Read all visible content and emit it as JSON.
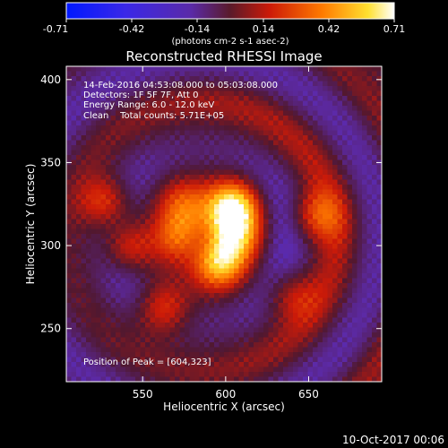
{
  "chart_data": {
    "type": "heatmap",
    "title": "Reconstructed RHESSI Image",
    "colorbar": {
      "ticks": [
        "-0.71",
        "-0.42",
        "-0.14",
        "0.14",
        "0.42",
        "0.71"
      ],
      "range": [
        -0.71,
        0.71
      ],
      "units_label": "(photons cm-2 s-1 asec-2)",
      "colormap": "blue-purple-red-yellow-white"
    },
    "xlabel": "Heliocentric X (arcsec)",
    "ylabel": "Heliocentric Y (arcsec)",
    "xlim": [
      504,
      694
    ],
    "ylim": [
      218,
      408
    ],
    "xticks": [
      550,
      600,
      650
    ],
    "yticks": [
      250,
      300,
      350,
      400
    ],
    "annotations": [
      "14-Feb-2016 04:53:08.000 to 05:03:08.000",
      "Detectors: 1F 5F 7F, Att 0",
      "Energy Range: 6.0 - 12.0 keV",
      "Clean    Total counts: 5.71E+05"
    ],
    "peak_label": "Position of Peak = [604,323]",
    "peak": [
      604,
      323
    ],
    "sources": [
      {
        "x": 528,
        "y": 326,
        "peak": 0.34
      },
      {
        "x": 540,
        "y": 299,
        "peak": 0.32
      },
      {
        "x": 573,
        "y": 305,
        "peak": 0.38
      },
      {
        "x": 575,
        "y": 325,
        "peak": 0.3
      },
      {
        "x": 604,
        "y": 323,
        "peak": 0.71
      },
      {
        "x": 596,
        "y": 290,
        "peak": 0.6
      },
      {
        "x": 606,
        "y": 306,
        "peak": 0.48
      },
      {
        "x": 562,
        "y": 262,
        "peak": 0.3
      },
      {
        "x": 655,
        "y": 318,
        "peak": 0.3
      },
      {
        "x": 640,
        "y": 270,
        "peak": 0.22
      }
    ]
  },
  "footer": {
    "timestamp": "10-Oct-2017 00:06"
  },
  "colors": {
    "background": "#000000",
    "foreground": "#ffffff"
  }
}
